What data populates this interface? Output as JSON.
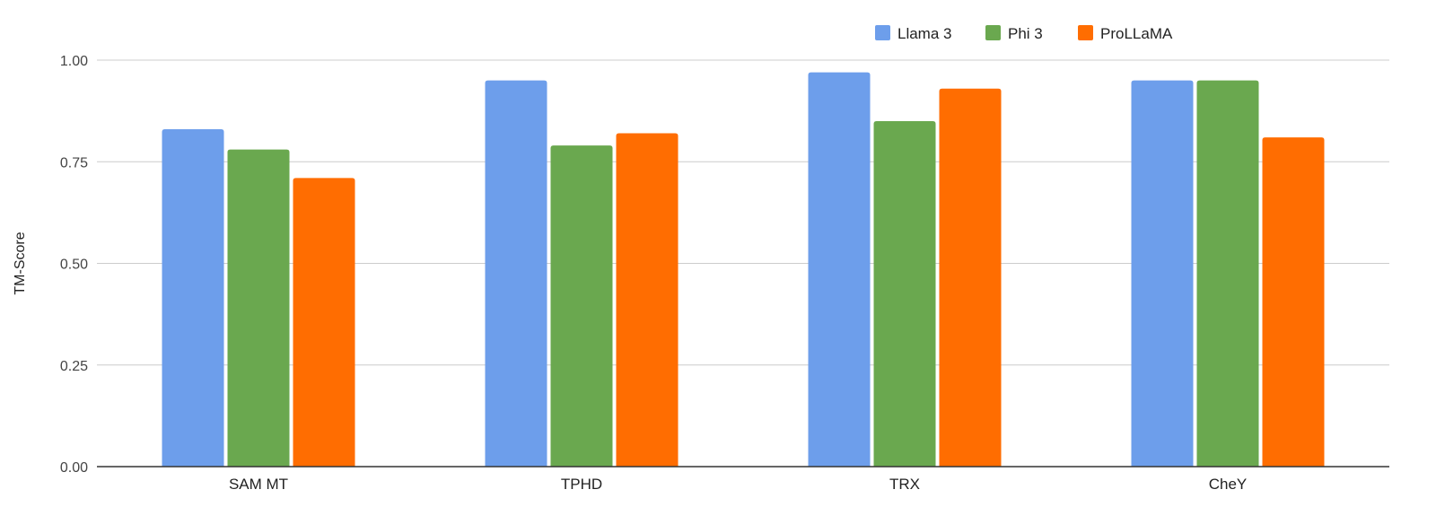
{
  "chart_data": {
    "type": "bar",
    "categories": [
      "SAM MT",
      "TPHD",
      "TRX",
      "CheY"
    ],
    "series": [
      {
        "name": "Llama 3",
        "color": "#6d9eeb",
        "values": [
          0.83,
          0.95,
          0.97,
          0.95
        ]
      },
      {
        "name": "Phi 3",
        "color": "#6aa84f",
        "values": [
          0.78,
          0.79,
          0.85,
          0.95
        ]
      },
      {
        "name": "ProLLaMA",
        "color": "#ff6d01",
        "values": [
          0.71,
          0.82,
          0.93,
          0.81
        ]
      }
    ],
    "title": "",
    "xlabel": "",
    "ylabel": "TM-Score",
    "ylim": [
      0,
      1.0
    ],
    "yticks": [
      "0.00",
      "0.25",
      "0.50",
      "0.75",
      "1.00"
    ],
    "grid": true,
    "legend_position": "top"
  }
}
